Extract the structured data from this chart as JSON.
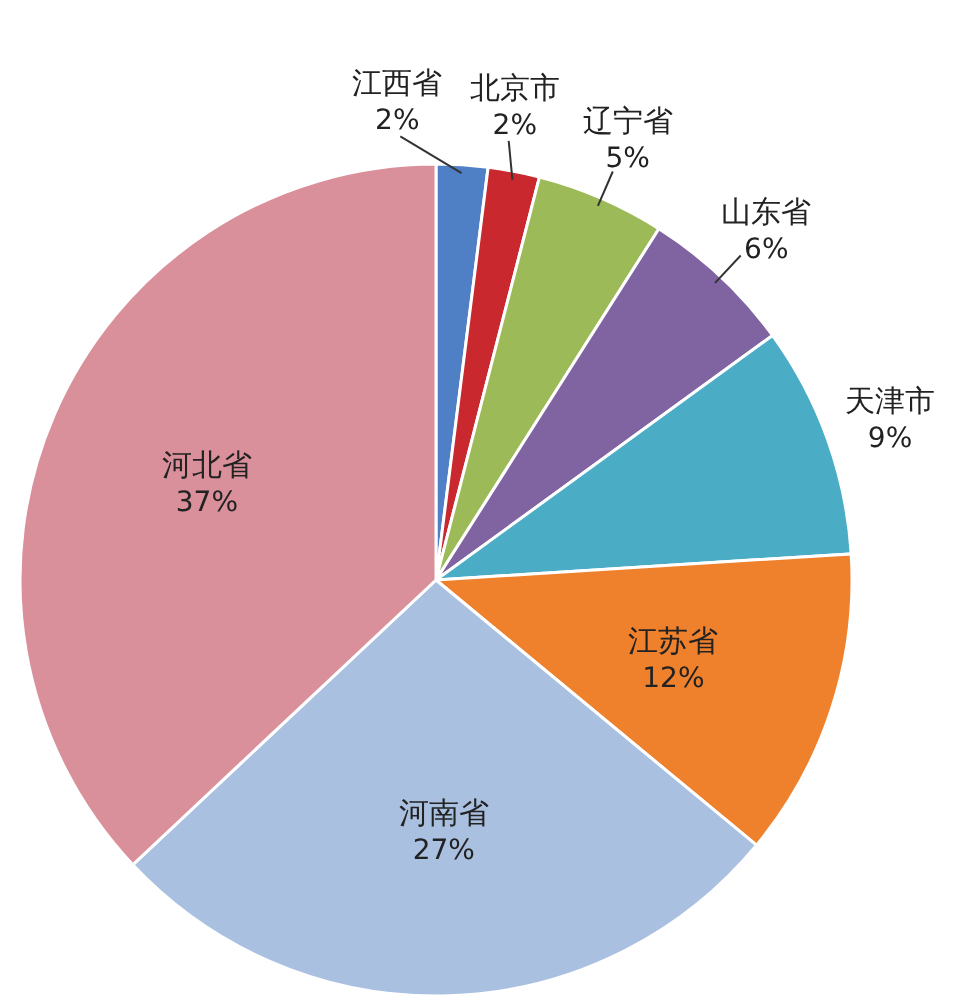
{
  "chart_data": {
    "type": "pie",
    "categories": [
      "江西省",
      "北京市",
      "辽宁省",
      "山东省",
      "天津市",
      "江苏省",
      "河南省",
      "河北省"
    ],
    "values": [
      2,
      2,
      5,
      6,
      9,
      12,
      27,
      37
    ],
    "colors": [
      "#4f7fc4",
      "#c8282e",
      "#9cbb58",
      "#8064a2",
      "#4bacc6",
      "#f0812c",
      "#aac0e0",
      "#d9909a"
    ],
    "value_labels": [
      "2%",
      "2%",
      "5%",
      "6%",
      "9%",
      "12%",
      "27%",
      "37%"
    ]
  }
}
